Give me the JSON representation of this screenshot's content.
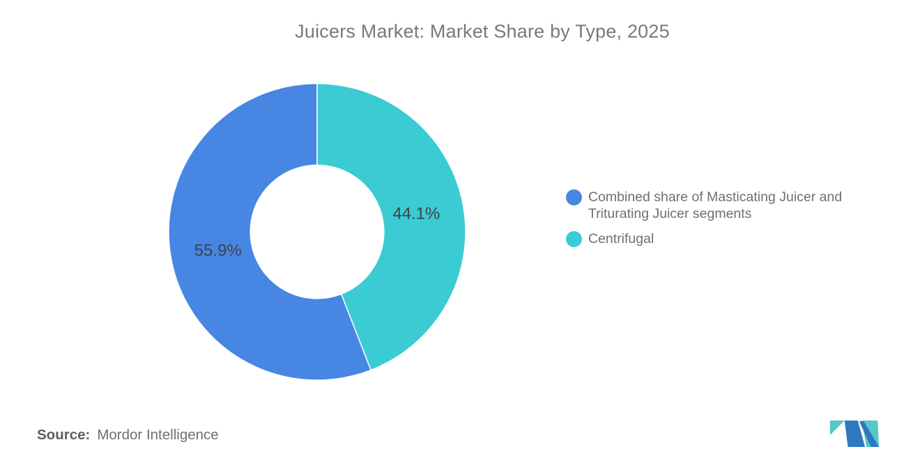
{
  "background_color": "#ffffff",
  "chart_data": {
    "type": "pie",
    "subtype": "donut",
    "title": "Juicers Market: Market Share by Type, 2025",
    "title_color": "#77797c",
    "series": [
      {
        "id": "combined-masticating-triturating",
        "name": "Combined share of Masticating Juicer and Triturating Juicer segments",
        "value": 55.9,
        "label": "55.9%",
        "color": "#4786E3"
      },
      {
        "id": "centrifugal",
        "name": "Centrifugal",
        "value": 44.1,
        "label": "44.1%",
        "color": "#3BCBD3"
      }
    ],
    "value_suffix": "%",
    "start_angle": "top",
    "direction": "counterclockwise",
    "inner_radius_ratio": 0.45,
    "slice_divider_color": "#ffffff",
    "slice_label_color": "#3f4347",
    "legend_position": "right"
  },
  "source": {
    "label": "Source:",
    "text": "Mordor Intelligence"
  },
  "logo": {
    "name": "Mordor Intelligence logo",
    "blue": "#2E79BE",
    "teal": "#56C6C6"
  }
}
